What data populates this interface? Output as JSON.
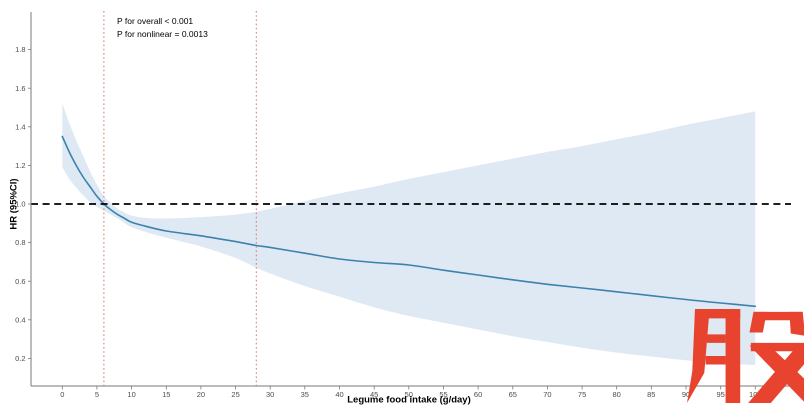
{
  "figure": {
    "description": "Restricted cubic spline of hazard ratio versus legume food intake with 95% confidence band"
  },
  "annotation": {
    "p_overall": "P for overall < 0.001",
    "p_nonlinear": "P for nonlinear = 0.0013"
  },
  "watermark": {
    "character": "股",
    "color": "#e8432e"
  },
  "chart_data": {
    "type": "line",
    "title": "",
    "xlabel": "Legume food intake (g/day)",
    "ylabel": "HR (95%CI)",
    "xlim": [
      0,
      100
    ],
    "ylim": [
      0.2,
      1.8
    ],
    "grid": false,
    "legend": "none",
    "x_ticks": [
      0,
      5,
      10,
      15,
      20,
      25,
      30,
      35,
      40,
      45,
      50,
      55,
      60,
      65,
      70,
      75,
      80,
      85,
      90,
      95,
      100
    ],
    "x_tick_labels": [
      "0",
      "5",
      "10",
      "15",
      "20",
      "25",
      "30",
      "35",
      "40",
      "45",
      "50",
      "55",
      "60",
      "65",
      "70",
      "75",
      "80",
      "85",
      "90",
      "95",
      "100"
    ],
    "y_ticks": [
      0.2,
      0.4,
      0.6,
      0.8,
      1.0,
      1.2,
      1.4,
      1.6,
      1.8
    ],
    "y_tick_labels": [
      "0.2",
      "0.4",
      "0.6",
      "0.8",
      "1.0",
      "1.2",
      "1.4",
      "1.6",
      "1.8"
    ],
    "reference_lines": {
      "hr_null": 1.0,
      "vertical_x": [
        6,
        28
      ]
    },
    "x": [
      0,
      1,
      2,
      3,
      4,
      5,
      6,
      7,
      8,
      9,
      10,
      12,
      15,
      20,
      25,
      28,
      30,
      35,
      40,
      45,
      50,
      55,
      60,
      65,
      70,
      75,
      80,
      85,
      90,
      95,
      100
    ],
    "series": [
      {
        "name": "HR",
        "values": [
          1.35,
          1.27,
          1.2,
          1.14,
          1.09,
          1.04,
          1.0,
          0.97,
          0.945,
          0.925,
          0.905,
          0.885,
          0.86,
          0.835,
          0.805,
          0.785,
          0.775,
          0.745,
          0.715,
          0.697,
          0.684,
          0.657,
          0.632,
          0.607,
          0.584,
          0.565,
          0.545,
          0.525,
          0.505,
          0.487,
          0.47
        ]
      },
      {
        "name": "95% CI lower",
        "values": [
          1.19,
          1.13,
          1.085,
          1.045,
          1.01,
          0.985,
          0.965,
          0.945,
          0.925,
          0.9,
          0.88,
          0.855,
          0.825,
          0.78,
          0.72,
          0.67,
          0.64,
          0.575,
          0.52,
          0.465,
          0.42,
          0.385,
          0.35,
          0.315,
          0.285,
          0.255,
          0.23,
          0.21,
          0.19,
          0.175,
          0.165
        ]
      },
      {
        "name": "95% CI upper",
        "values": [
          1.52,
          1.42,
          1.33,
          1.25,
          1.17,
          1.1,
          1.04,
          1.005,
          0.975,
          0.955,
          0.94,
          0.928,
          0.925,
          0.932,
          0.945,
          0.96,
          0.975,
          1.015,
          1.055,
          1.09,
          1.13,
          1.165,
          1.2,
          1.235,
          1.27,
          1.3,
          1.335,
          1.37,
          1.41,
          1.445,
          1.48
        ]
      }
    ],
    "colors": {
      "curve": "#3c82ae",
      "ci_band": "#dfe9f4",
      "vline": "#d9736d",
      "hline": "#000000",
      "axis": "#7a7a7a",
      "tick_label": "#4d4d4d"
    }
  }
}
